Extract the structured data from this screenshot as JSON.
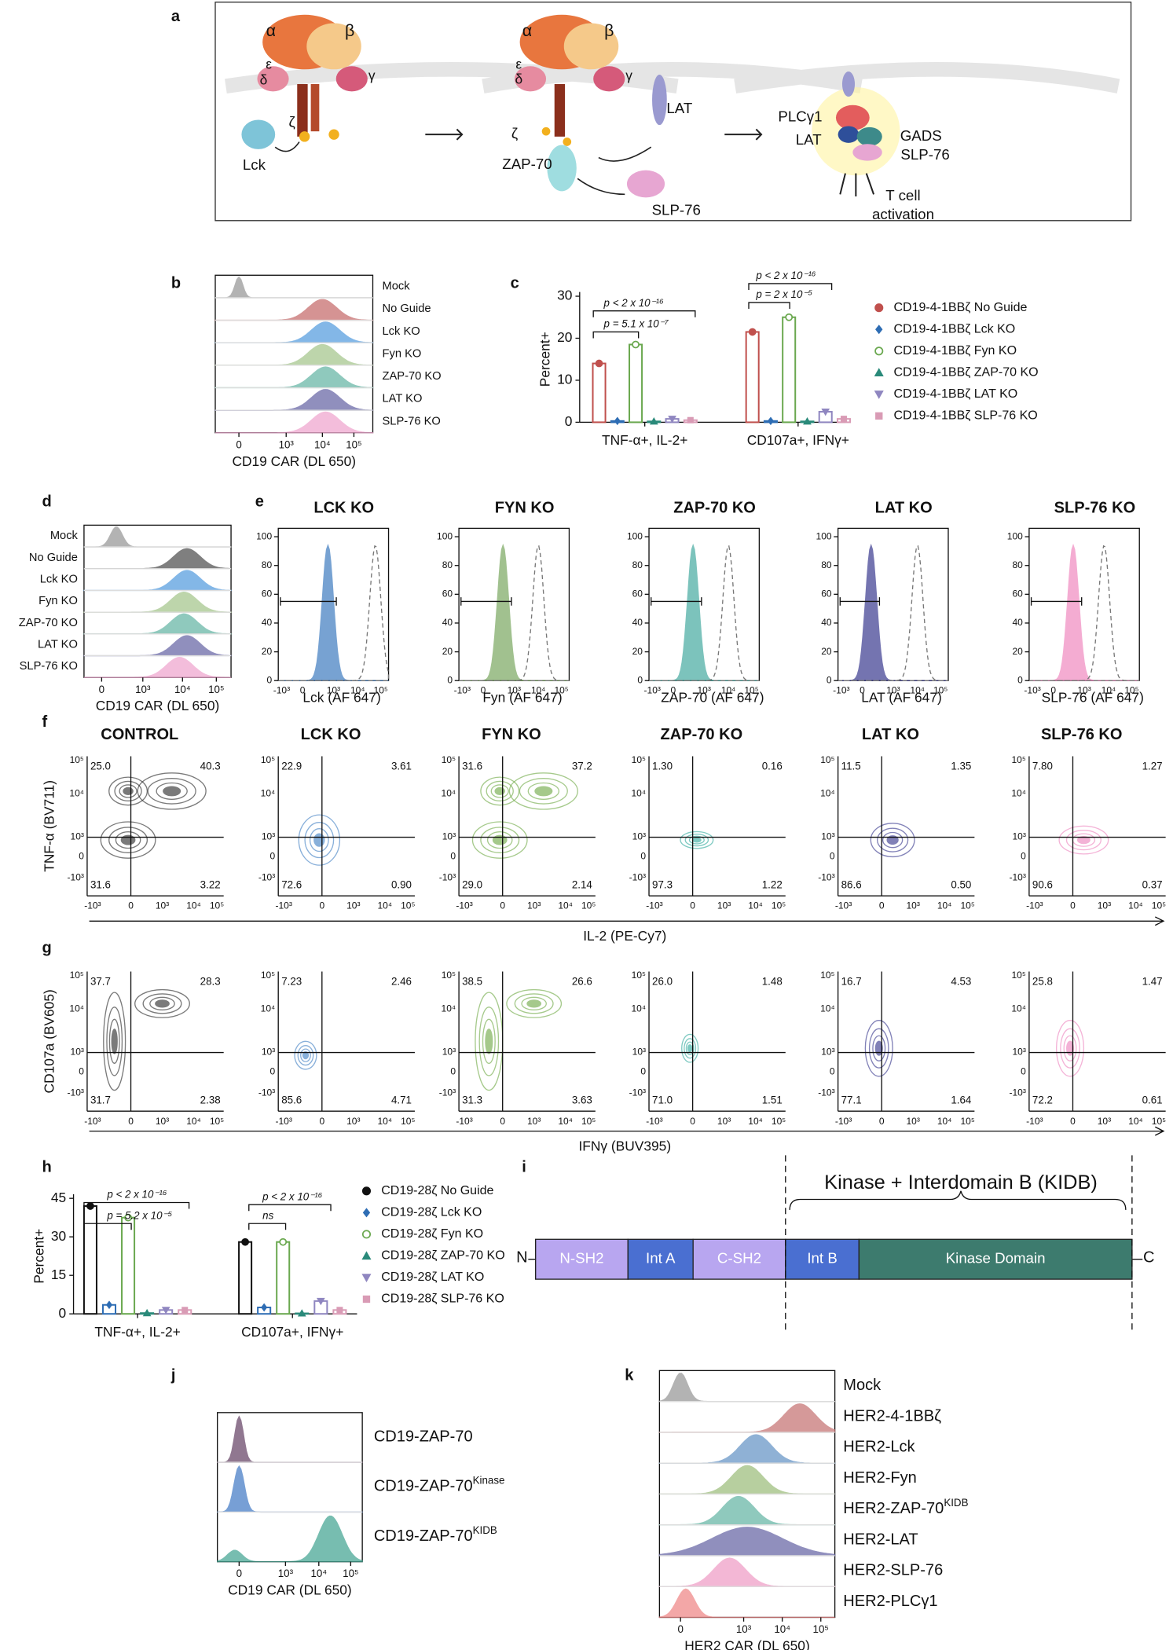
{
  "panel_labels": [
    "a",
    "b",
    "c",
    "d",
    "e",
    "f",
    "g",
    "h",
    "i",
    "j",
    "k"
  ],
  "diagram": {
    "labels": [
      "α",
      "β",
      "ε",
      "δ",
      "γ",
      "ζ",
      "Lck",
      "α",
      "β",
      "ε",
      "δ",
      "γ",
      "ζ",
      "ZAP-70",
      "LAT",
      "SLP-76",
      "PLCγ1",
      "LAT",
      "GADS",
      "SLP-76",
      "T cell",
      "activation"
    ]
  },
  "hist_b": {
    "rows": [
      "Mock",
      "No Guide",
      "Lck KO",
      "Fyn KO",
      "ZAP-70 KO",
      "LAT KO",
      "SLP-76 KO"
    ],
    "xticks": [
      "0",
      "10³",
      "10⁴",
      "10⁵"
    ],
    "xlabel": "CD19 CAR (DL 650)"
  },
  "hist_d": {
    "rows": [
      "Mock",
      "No Guide",
      "Lck KO",
      "Fyn KO",
      "ZAP-70 KO",
      "LAT KO",
      "SLP-76 KO"
    ],
    "xticks": [
      "0",
      "10³",
      "10⁴",
      "10⁵"
    ],
    "xlabel": "CD19 CAR (DL 650)"
  },
  "panel_e": {
    "yticks": [
      0,
      20,
      40,
      60,
      80,
      100
    ],
    "xticks": [
      "-10³",
      "0",
      "10³",
      "10⁴",
      "10⁵"
    ],
    "plots": [
      {
        "title": "LCK KO",
        "xlabel": "Lck (AF 647)"
      },
      {
        "title": "FYN KO",
        "xlabel": "Fyn (AF 647)"
      },
      {
        "title": "ZAP-70 KO",
        "xlabel": "ZAP-70 (AF 647)"
      },
      {
        "title": "LAT KO",
        "xlabel": "LAT (AF 647)"
      },
      {
        "title": "SLP-76 KO",
        "xlabel": "SLP-76 (AF 647)"
      }
    ]
  },
  "flow": {
    "titles": [
      "CONTROL",
      "LCK KO",
      "FYN KO",
      "ZAP-70 KO",
      "LAT KO",
      "SLP-76 KO"
    ],
    "yticks": [
      "10⁵",
      "10⁴",
      "10³",
      "0",
      "-10³"
    ],
    "xticks": [
      "-10³",
      "0",
      "10³",
      "10⁴",
      "10⁵"
    ],
    "f": {
      "ylabel": "TNF-α (BV711)",
      "xlabel": "IL-2 (PE-Cy7)",
      "quadrants": [
        [
          "25.0",
          "40.3",
          "31.6",
          "3.22"
        ],
        [
          "22.9",
          "3.61",
          "72.6",
          "0.90"
        ],
        [
          "31.6",
          "37.2",
          "29.0",
          "2.14"
        ],
        [
          "1.30",
          "0.16",
          "97.3",
          "1.22"
        ],
        [
          "11.5",
          "1.35",
          "86.6",
          "0.50"
        ],
        [
          "7.80",
          "1.27",
          "90.6",
          "0.37"
        ]
      ]
    },
    "g": {
      "ylabel": "CD107a (BV605)",
      "xlabel": "IFNγ (BUV395)",
      "quadrants": [
        [
          "37.7",
          "28.3",
          "31.7",
          "2.38"
        ],
        [
          "7.23",
          "2.46",
          "85.6",
          "4.71"
        ],
        [
          "38.5",
          "26.6",
          "31.3",
          "3.63"
        ],
        [
          "26.0",
          "1.48",
          "71.0",
          "1.51"
        ],
        [
          "16.7",
          "4.53",
          "77.1",
          "1.64"
        ],
        [
          "25.8",
          "1.47",
          "72.2",
          "0.61"
        ]
      ]
    }
  },
  "chart_data": [
    {
      "type": "bar",
      "ylabel": "Percent+",
      "categories": [
        "TNF-α+, IL-2+",
        "CD107a+, IFNγ+"
      ],
      "ylim": [
        0,
        30
      ],
      "yticks": [
        0,
        10,
        20,
        30
      ],
      "series": [
        {
          "name": "CD19-4-1BBζ No Guide",
          "color": "#c0504d",
          "marker": "circle",
          "values": [
            14,
            21.5
          ]
        },
        {
          "name": "CD19-4-1BBζ Lck KO",
          "color": "#2e6db4",
          "marker": "diamond",
          "values": [
            0.3,
            0.3
          ]
        },
        {
          "name": "CD19-4-1BBζ Fyn KO",
          "color": "#6aa84f",
          "marker": "open-circle",
          "values": [
            18.5,
            25
          ]
        },
        {
          "name": "CD19-4-1BBζ ZAP-70 KO",
          "color": "#2a8a7a",
          "marker": "triangle",
          "values": [
            0.2,
            0.2
          ]
        },
        {
          "name": "CD19-4-1BBζ LAT KO",
          "color": "#8f86c0",
          "marker": "triangle-down",
          "values": [
            0.8,
            2.5
          ]
        },
        {
          "name": "CD19-4-1BBζ SLP-76 KO",
          "color": "#d99bb5",
          "marker": "square",
          "values": [
            0.5,
            0.8
          ]
        }
      ],
      "annotations": [
        "p < 2 x 10⁻¹⁶",
        "p = 5.1 x 10⁻⁷",
        "p < 2 x 10⁻¹⁶",
        "p = 2 x 10⁻⁵"
      ]
    },
    {
      "type": "bar",
      "ylabel": "Percent+",
      "categories": [
        "TNF-α+, IL-2+",
        "CD107a+, IFNγ+"
      ],
      "ylim": [
        0,
        45
      ],
      "yticks": [
        0,
        15,
        30,
        45
      ],
      "series": [
        {
          "name": "CD19-28ζ No Guide",
          "color": "#111111",
          "marker": "circle",
          "values": [
            42,
            28
          ]
        },
        {
          "name": "CD19-28ζ Lck KO",
          "color": "#2e6db4",
          "marker": "diamond",
          "values": [
            3.5,
            2.5
          ]
        },
        {
          "name": "CD19-28ζ Fyn KO",
          "color": "#6aa84f",
          "marker": "open-circle",
          "values": [
            37.5,
            28
          ]
        },
        {
          "name": "CD19-28ζ ZAP-70 KO",
          "color": "#2a8a7a",
          "marker": "triangle",
          "values": [
            0.3,
            0.2
          ]
        },
        {
          "name": "CD19-28ζ LAT KO",
          "color": "#8f86c0",
          "marker": "triangle-down",
          "values": [
            1.5,
            5
          ]
        },
        {
          "name": "CD19-28ζ SLP-76 KO",
          "color": "#d99bb5",
          "marker": "square",
          "values": [
            1.5,
            1.5
          ]
        }
      ],
      "annotations": [
        "p < 2 x 10⁻¹⁶",
        "p = 5.2 x 10⁻⁵",
        "p < 2 x 10⁻¹⁶",
        "ns"
      ]
    }
  ],
  "domains": {
    "title": "Kinase + Interdomain B (KIDB)",
    "n": "N",
    "c": "C",
    "segments": [
      "N-SH2",
      "Int A",
      "C-SH2",
      "Int B",
      "Kinase Domain"
    ]
  },
  "hist_j": {
    "rows": [
      {
        "text": "CD19-ZAP-70"
      },
      {
        "text": "CD19-ZAP-70",
        "sup": "Kinase"
      },
      {
        "text": "CD19-ZAP-70",
        "sup": "KIDB"
      }
    ],
    "xticks": [
      "0",
      "10³",
      "10⁴",
      "10⁵"
    ],
    "xlabel": "CD19 CAR (DL 650)"
  },
  "hist_k": {
    "rows": [
      {
        "text": "Mock"
      },
      {
        "text": "HER2-4-1BBζ"
      },
      {
        "text": "HER2-Lck"
      },
      {
        "text": "HER2-Fyn"
      },
      {
        "text": "HER2-ZAP-70",
        "sup": "KIDB"
      },
      {
        "text": "HER2-LAT"
      },
      {
        "text": "HER2-SLP-76"
      },
      {
        "text": "HER2-PLCγ1"
      }
    ],
    "xticks": [
      "0",
      "10³",
      "10⁴",
      "10⁵"
    ],
    "xlabel": "HER2 CAR (DL 650)"
  }
}
